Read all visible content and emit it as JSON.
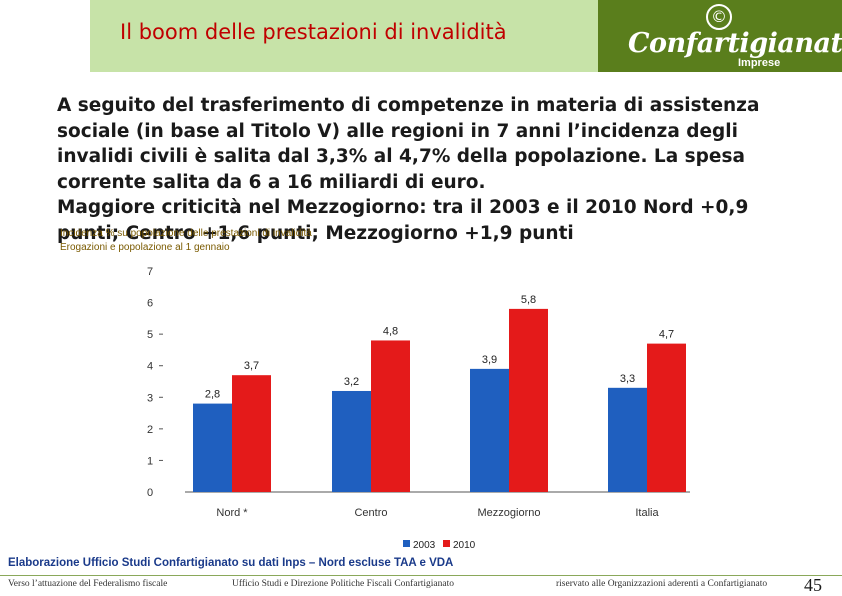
{
  "header": {
    "title": "Il boom delle prestazioni di invalidità"
  },
  "logo": {
    "symbol": "©",
    "name": "Confartigianato",
    "sub": "Imprese"
  },
  "body": {
    "lines": [
      "A seguito del trasferimento di competenze in materia di assistenza",
      "sociale (in base al Titolo V) alle regioni in 7 anni l’incidenza degli",
      "invalidi civili è salita dal 3,3% al 4,7% della popolazione. La spesa",
      "corrente  salita da 6 a 16 miliardi di euro.",
      "Maggiore criticità nel Mezzogiorno: tra il 2003 e il 2010 Nord +0,9",
      "punti; Centro +1,6 punti; Mezzogiorno +1,9 punti"
    ]
  },
  "chart_subtitle": {
    "line1": "Incidenza % su popolazione delle prestazioni di invalidità",
    "line2": "Erogazioni e popolazione al 1 gennaio"
  },
  "chart_data": {
    "type": "bar",
    "categories": [
      "Nord *",
      "Centro",
      "Mezzogiorno",
      "Italia"
    ],
    "series": [
      {
        "name": "2003",
        "values": [
          2.8,
          3.2,
          3.9,
          3.3
        ],
        "labels": [
          "2,8",
          "3,2",
          "3,9",
          "3,3"
        ],
        "color": "#1f5fbf"
      },
      {
        "name": "2010",
        "values": [
          3.7,
          4.8,
          5.8,
          4.7
        ],
        "labels": [
          "3,7",
          "4,8",
          "5,8",
          "4,7"
        ],
        "color": "#e41a1a"
      }
    ],
    "yticks": [
      "0",
      "1",
      "2",
      "3",
      "4",
      "5",
      "6",
      "7"
    ],
    "ylim": [
      0,
      7
    ],
    "legend_position": "bottom-right"
  },
  "source_note": "Elaborazione Ufficio Studi Confartigianato su dati Inps – Nord escluse TAA e VDA",
  "footer": {
    "left": "Verso l’attuazione del Federalismo fiscale",
    "center": "Ufficio Studi e Direzione Politiche Fiscali Confartigianato",
    "right": "riservato alle Organizzazioni aderenti a Confartigianato",
    "page": "45"
  }
}
